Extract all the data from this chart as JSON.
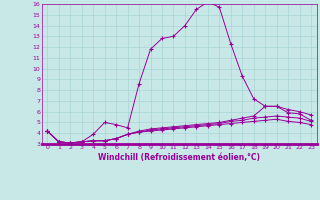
{
  "xlabel": "Windchill (Refroidissement éolien,°C)",
  "background_color": "#c8e8e8",
  "line_color": "#990099",
  "grid_color": "#aad4d4",
  "xlim": [
    -0.5,
    23.5
  ],
  "ylim": [
    3,
    16
  ],
  "xticks": [
    0,
    1,
    2,
    3,
    4,
    5,
    6,
    7,
    8,
    9,
    10,
    11,
    12,
    13,
    14,
    15,
    16,
    17,
    18,
    19,
    20,
    21,
    22,
    23
  ],
  "yticks": [
    3,
    4,
    5,
    6,
    7,
    8,
    9,
    10,
    11,
    12,
    13,
    14,
    15,
    16
  ],
  "series": [
    [
      4.2,
      3.2,
      3.1,
      3.2,
      3.9,
      5.0,
      4.8,
      4.5,
      8.6,
      11.8,
      12.8,
      13.0,
      14.0,
      15.5,
      16.2,
      15.7,
      12.3,
      9.3,
      7.2,
      6.5,
      6.5,
      5.9,
      5.8,
      5.2
    ],
    [
      4.2,
      3.2,
      3.1,
      3.2,
      3.3,
      3.3,
      3.5,
      3.9,
      4.2,
      4.4,
      4.5,
      4.6,
      4.7,
      4.8,
      4.9,
      5.0,
      5.2,
      5.4,
      5.6,
      6.5,
      6.5,
      6.2,
      6.0,
      5.7
    ],
    [
      4.2,
      3.2,
      3.1,
      3.2,
      3.3,
      3.3,
      3.5,
      3.9,
      4.1,
      4.3,
      4.4,
      4.5,
      4.6,
      4.7,
      4.8,
      4.9,
      5.1,
      5.2,
      5.4,
      5.5,
      5.6,
      5.5,
      5.4,
      5.1
    ],
    [
      4.2,
      3.2,
      3.1,
      3.2,
      3.3,
      3.3,
      3.5,
      3.9,
      4.1,
      4.2,
      4.3,
      4.4,
      4.5,
      4.6,
      4.7,
      4.8,
      4.9,
      5.0,
      5.1,
      5.2,
      5.3,
      5.1,
      5.0,
      4.8
    ]
  ]
}
